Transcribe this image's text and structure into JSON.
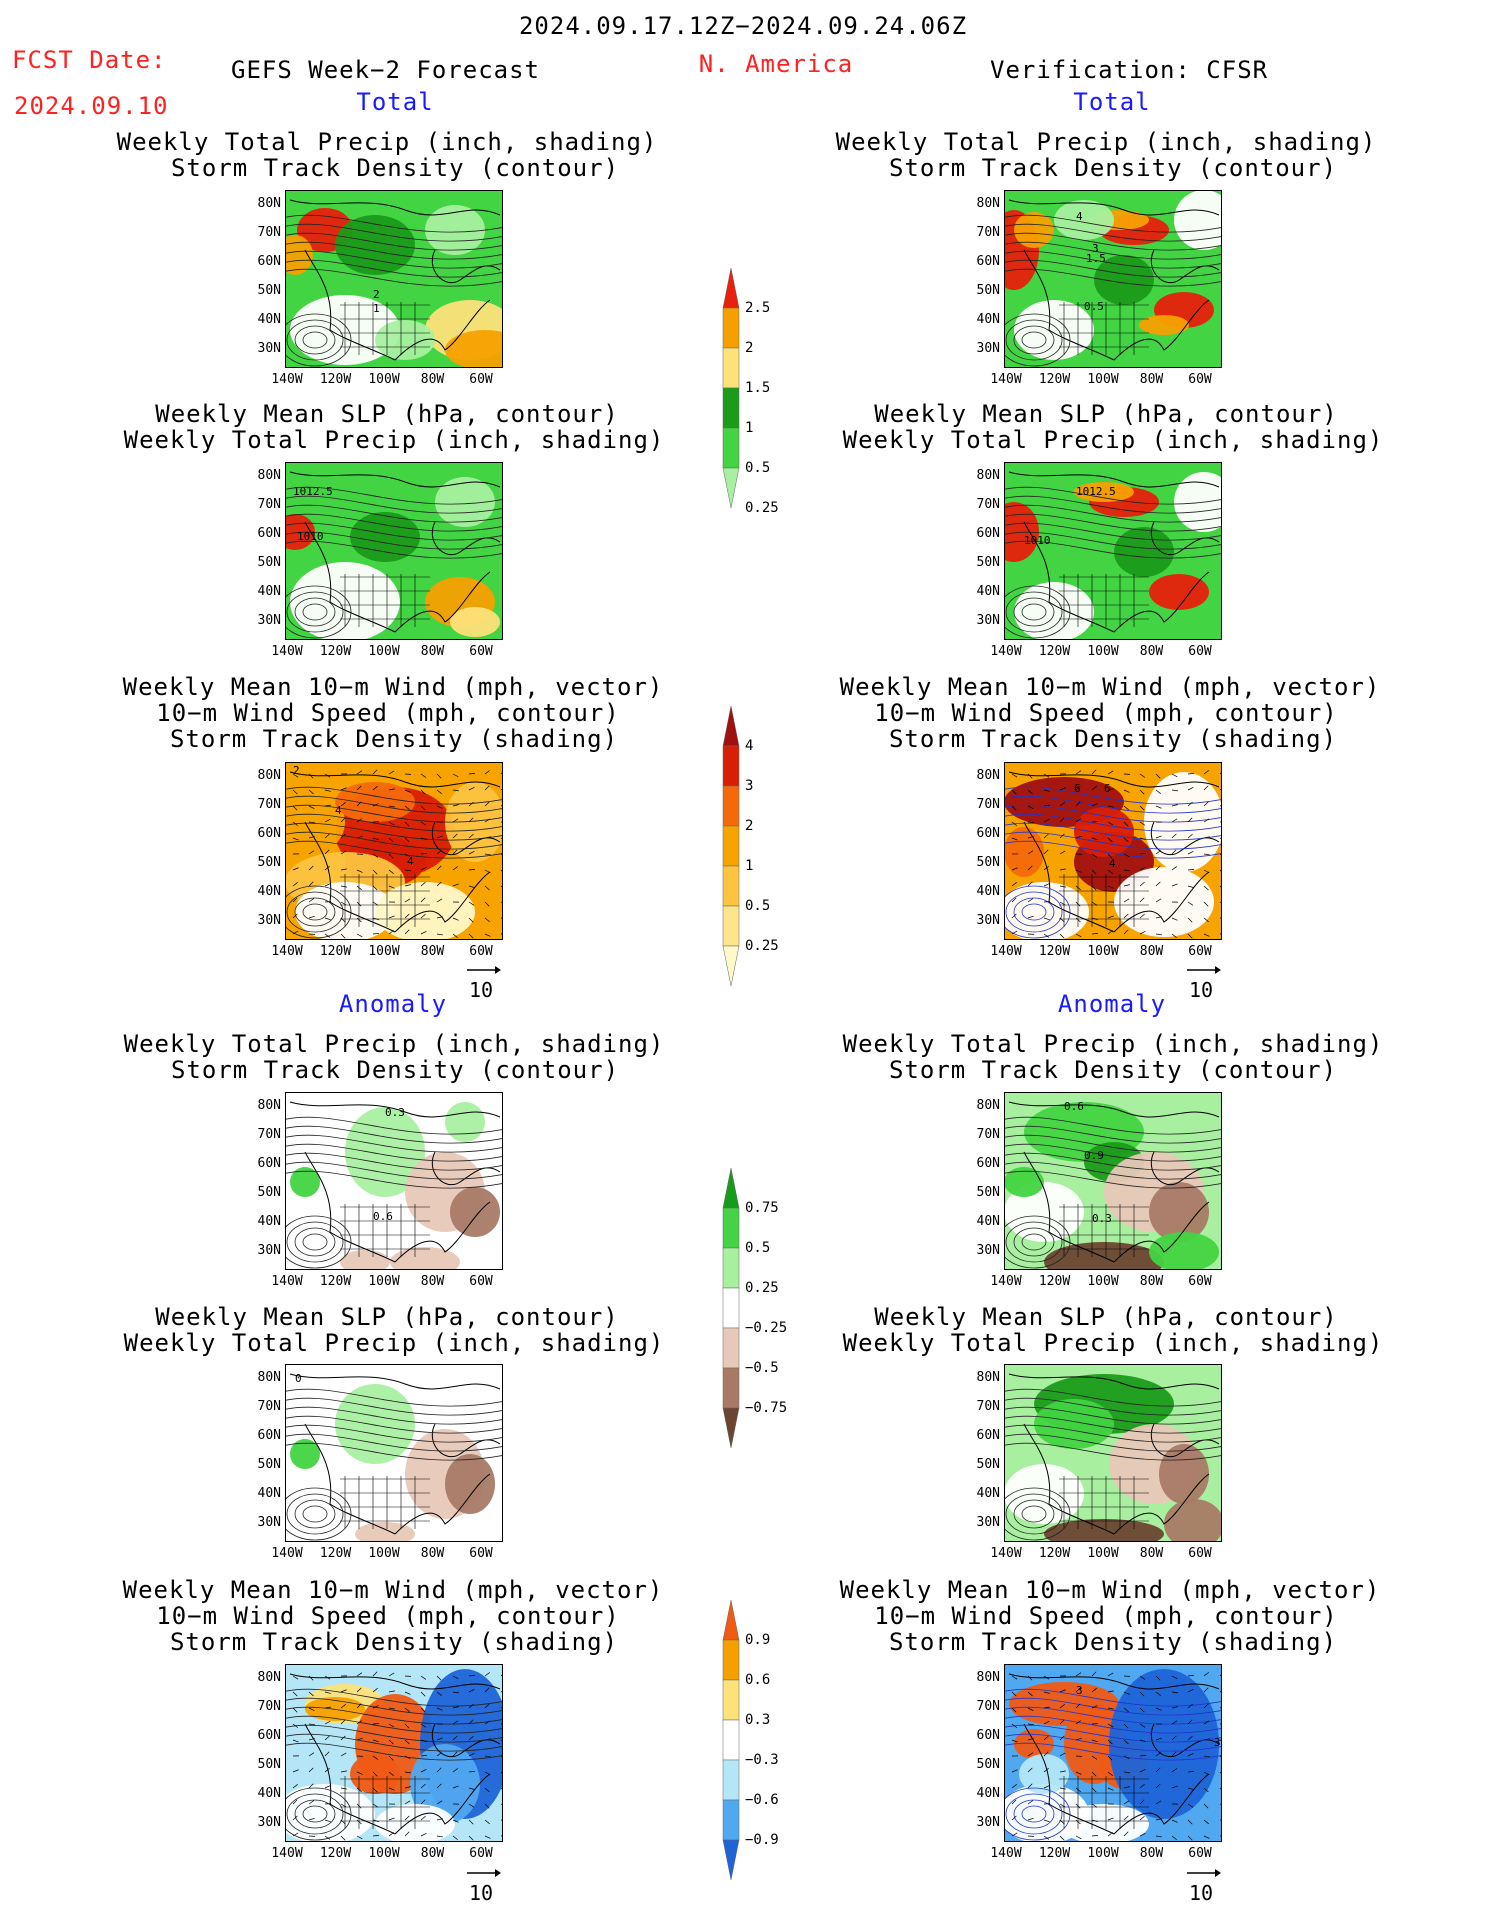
{
  "header": {
    "date_range": "2024.09.17.12Z−2024.09.24.06Z",
    "fcst_label": "FCST Date:",
    "fcst_date": "2024.09.10",
    "left_title": "GEFS Week−2 Forecast",
    "region": "N. America",
    "right_title": "Verification: CFSR"
  },
  "sections": {
    "total": "Total",
    "anomaly": "Anomaly"
  },
  "panel_titles": {
    "precip_storm": [
      "Weekly Total Precip (inch, shading)",
      "Storm Track Density (contour)"
    ],
    "slp_precip": [
      "Weekly Mean SLP (hPa, contour)",
      "Weekly Total Precip (inch, shading)"
    ],
    "wind_storm": [
      "Weekly Mean 10−m Wind (mph, vector)",
      "10−m Wind Speed (mph, contour)",
      "Storm Track Density (shading)"
    ]
  },
  "map_axes": {
    "lat_ticks": [
      "80N",
      "70N",
      "60N",
      "50N",
      "40N",
      "30N"
    ],
    "lon_ticks": [
      "140W",
      "120W",
      "100W",
      "80W",
      "60W"
    ]
  },
  "vector_ref": "10",
  "contour_labels": {
    "left_total_precip": [
      "2",
      "1"
    ],
    "right_total_precip": [
      "4",
      "3",
      "1.5",
      "0.5"
    ],
    "left_total_slp": [
      "1012.5",
      "1010"
    ],
    "right_total_slp": [
      "1012.5",
      "1010"
    ],
    "left_total_wind": [
      "2",
      "4",
      "4"
    ],
    "right_total_wind": [
      "6",
      "6",
      "4"
    ],
    "left_anom_precip": [
      "0.3",
      "0.6"
    ],
    "right_anom_precip": [
      "0.6",
      "0.9",
      "0.3"
    ],
    "left_anom_slp": [
      "0"
    ],
    "right_anom_wind": [
      "3",
      "3"
    ]
  },
  "colorbars": {
    "total_precip": {
      "labels": [
        "2.5",
        "2",
        "1.5",
        "1",
        "0.5",
        "0.25"
      ],
      "colors": [
        "#e8200c",
        "#f5a000",
        "#fde27a",
        "#1a9b1a",
        "#42d442",
        "#a8f0a0"
      ]
    },
    "total_storm": {
      "labels": [
        "4",
        "3",
        "2",
        "1",
        "0.5",
        "0.25"
      ],
      "colors": [
        "#a01010",
        "#d81e05",
        "#f46a0a",
        "#f7a400",
        "#fcc440",
        "#fde58c",
        "#fff8c8"
      ]
    },
    "anom_precip": {
      "labels": [
        "0.75",
        "0.5",
        "0.25",
        "−0.25",
        "−0.5",
        "−0.75"
      ],
      "colors": [
        "#179c1a",
        "#46d246",
        "#a8f0a0",
        "#ffffff",
        "#e8c8b8",
        "#a87a66",
        "#6b4433"
      ]
    },
    "anom_storm": {
      "labels": [
        "0.9",
        "0.6",
        "0.3",
        "−0.3",
        "−0.6",
        "−0.9"
      ],
      "colors": [
        "#f05a14",
        "#f5a000",
        "#fde27a",
        "#ffffff",
        "#b4e6f8",
        "#50a8f0",
        "#1e64d8"
      ]
    }
  }
}
